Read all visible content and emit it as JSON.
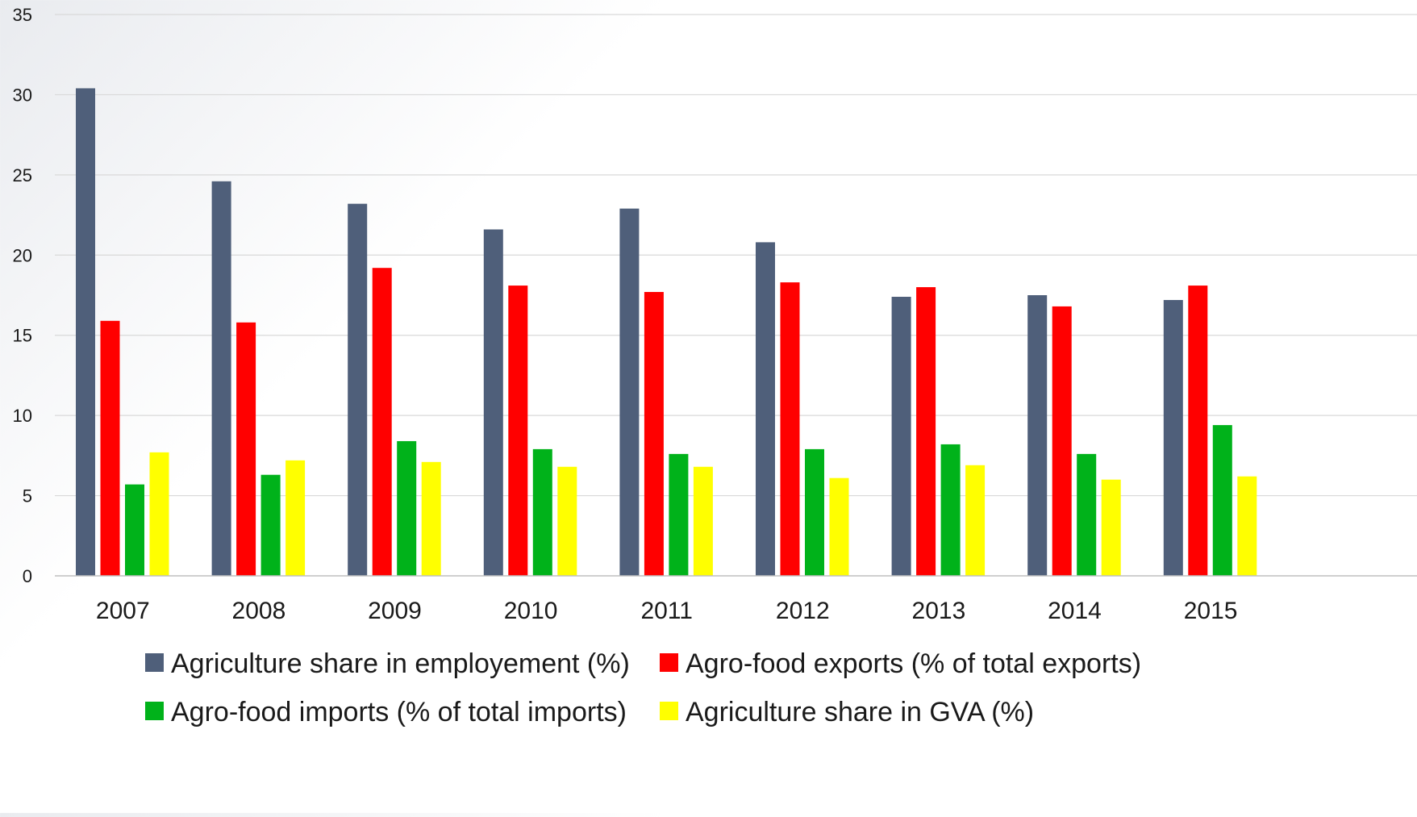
{
  "chart_data": {
    "type": "bar",
    "title": "",
    "xlabel": "",
    "ylabel": "",
    "categories": [
      "2007",
      "2008",
      "2009",
      "2010",
      "2011",
      "2012",
      "2013",
      "2014",
      "2015"
    ],
    "ylim": [
      0,
      35
    ],
    "yticks": [
      0,
      5,
      10,
      15,
      20,
      25,
      30,
      35
    ],
    "grid": true,
    "legend_position": "bottom",
    "series": [
      {
        "name": "Agriculture share in employement (%)",
        "color": "#4f5f7a",
        "values": [
          30.4,
          24.6,
          23.2,
          21.6,
          22.9,
          20.8,
          17.4,
          17.5,
          17.2
        ]
      },
      {
        "name": "Agro-food exports (% of total exports)",
        "color": "#ff0000",
        "values": [
          15.9,
          15.8,
          19.2,
          18.1,
          17.7,
          18.3,
          18.0,
          16.8,
          18.1
        ]
      },
      {
        "name": "Agro-food imports (% of total imports)",
        "color": "#00b21a",
        "values": [
          5.7,
          6.3,
          8.4,
          7.9,
          7.6,
          7.9,
          8.2,
          7.6,
          9.4
        ]
      },
      {
        "name": "Agriculture share in GVA (%)",
        "color": "#ffff00",
        "values": [
          7.7,
          7.2,
          7.1,
          6.8,
          6.8,
          6.1,
          6.9,
          6.0,
          6.2
        ]
      }
    ]
  }
}
